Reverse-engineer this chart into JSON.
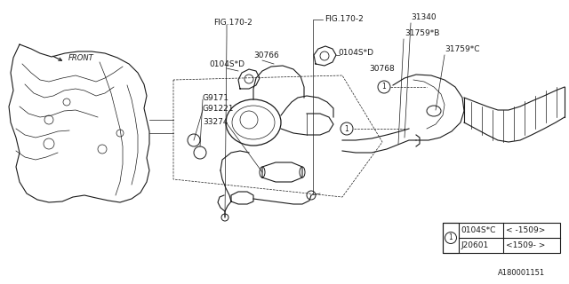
{
  "bg_color": "#ffffff",
  "line_color": "#1a1a1a",
  "fig_number": "A180001151",
  "front_label": "FRONT",
  "labels": {
    "FIG170_2_top": "FIG.170-2",
    "FIG170_2_right": "FIG.170-2",
    "part_33274": "33274",
    "part_G91221": "G91221",
    "part_G9171": "G9171",
    "part_0104SD_left": "0104S*D",
    "part_30766": "30766",
    "part_0104SD_right": "0104S*D",
    "part_30768": "30768",
    "part_31340": "31340",
    "part_31759B": "31759*B",
    "part_31759C": "31759*C"
  },
  "legend": {
    "rows": [
      {
        "part": "0104S*C",
        "range": "< -1509>"
      },
      {
        "part": "J20601",
        "range": "<1509- >"
      }
    ]
  },
  "font_size": 6.5,
  "font_size_small": 5.5
}
